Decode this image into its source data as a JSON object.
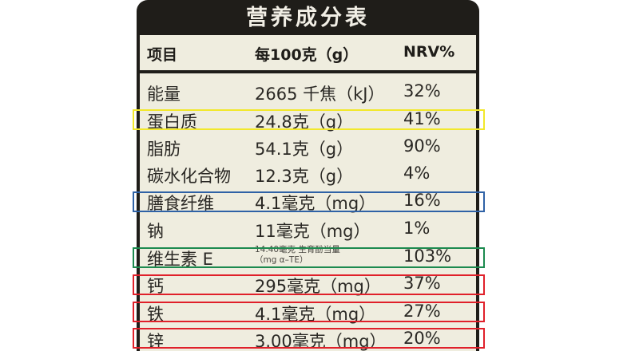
{
  "title": "营养成分表",
  "header": {
    "col1": "项目",
    "col2": "每100克（g）",
    "col3": "NRV%"
  },
  "rows": [
    {
      "item": "能量",
      "amount": "2665 千焦（kJ）",
      "nrv": "32%"
    },
    {
      "item": "蛋白质",
      "amount": "24.8克（g）",
      "nrv": "41%"
    },
    {
      "item": "脂肪",
      "amount": "54.1克（g）",
      "nrv": "90%"
    },
    {
      "item": "碳水化合物",
      "amount": "12.3克（g）",
      "nrv": "4%"
    },
    {
      "item": "膳食纤维",
      "amount": "4.1毫克（mg）",
      "nrv": "16%"
    },
    {
      "item": "钠",
      "amount": "11毫克（mg）",
      "nrv": "1%"
    },
    {
      "item": "维生素 E",
      "amount_line1": "14.40毫克 生育酚当量",
      "amount_line2": "（mg α–TE）",
      "nrv": "103%"
    },
    {
      "item": "钙",
      "amount": "295毫克（mg）",
      "nrv": "37%"
    },
    {
      "item": "铁",
      "amount": "4.1毫克（mg）",
      "nrv": "27%"
    },
    {
      "item": "锌",
      "amount": "3.00毫克（mg）",
      "nrv": "20%"
    }
  ],
  "highlight_colors": {
    "yellow": "#f2e82a",
    "blue": "#2f62a6",
    "green": "#1c8a4f",
    "red": "#e0202a"
  }
}
